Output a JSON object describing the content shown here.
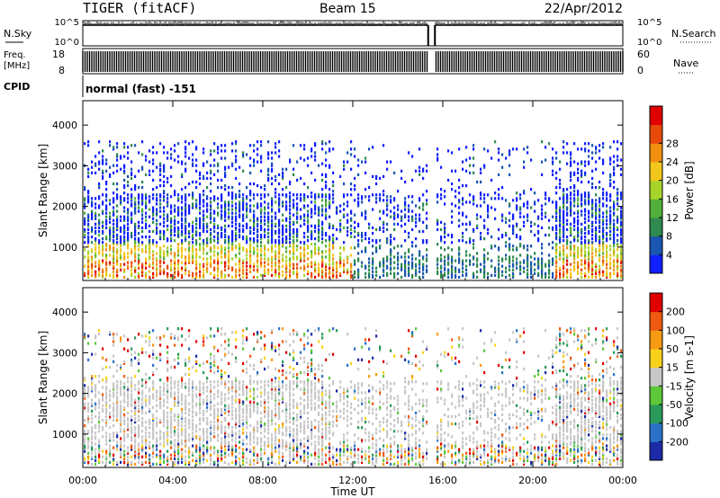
{
  "header": {
    "station": "TIGER (fitACF)",
    "beam": "Beam 15",
    "date": "22/Apr/2012"
  },
  "strip_panels": {
    "nsky": {
      "label": "N.Sky",
      "tick_top": "10^5",
      "tick_bottom": "10^0",
      "right_label": "N.Search",
      "right_tick_top": "10^5",
      "right_tick_bottom": "10^0"
    },
    "freq": {
      "label_top": "Freq.",
      "label_bottom": "[MHz]",
      "tick_top": "18",
      "tick_bottom": "8",
      "right_label": "Nave",
      "right_tick_top": "60",
      "right_tick_bottom": "0"
    },
    "cpid": {
      "label": "CPID",
      "value": "normal (fast) -151"
    }
  },
  "chart_data": [
    {
      "type": "heatmap",
      "name": "power",
      "ylabel": "Slant Range [km]",
      "ylim": [
        180,
        4600
      ],
      "yticks": [
        1000,
        2000,
        3000,
        4000
      ],
      "xlim": [
        0,
        24
      ],
      "colorbar": {
        "label": "Power [dB]",
        "ticks": [
          "4",
          "8",
          "12",
          "16",
          "20",
          "24",
          "28"
        ],
        "colors": [
          "#1020ff",
          "#1a55b0",
          "#2e8a4f",
          "#52b03a",
          "#a8d42a",
          "#f2c61a",
          "#f08f10",
          "#e84a0c",
          "#e00000"
        ]
      },
      "data_gap_hours": [
        15.35,
        15.65
      ]
    },
    {
      "type": "heatmap",
      "name": "velocity",
      "ylabel": "Slant Range [km]",
      "ylim": [
        180,
        4600
      ],
      "yticks": [
        1000,
        2000,
        3000,
        4000
      ],
      "xlim": [
        0,
        24
      ],
      "colorbar": {
        "label": "Velocity [m s-1]",
        "ticks": [
          "200",
          "100",
          "50",
          "15",
          "-15",
          "-50",
          "-100",
          "-200"
        ],
        "colors": [
          "#1c2aa8",
          "#2a72c8",
          "#2a9a5a",
          "#5cc83a",
          "#c8c8c8",
          "#f8d21a",
          "#f59a12",
          "#f05a10",
          "#e00000"
        ]
      },
      "data_gap_hours": [
        15.35,
        15.65
      ]
    }
  ],
  "xaxis": {
    "label": "Time UT",
    "ticks": [
      "00:00",
      "04:00",
      "08:00",
      "12:00",
      "16:00",
      "20:00",
      "00:00"
    ]
  }
}
